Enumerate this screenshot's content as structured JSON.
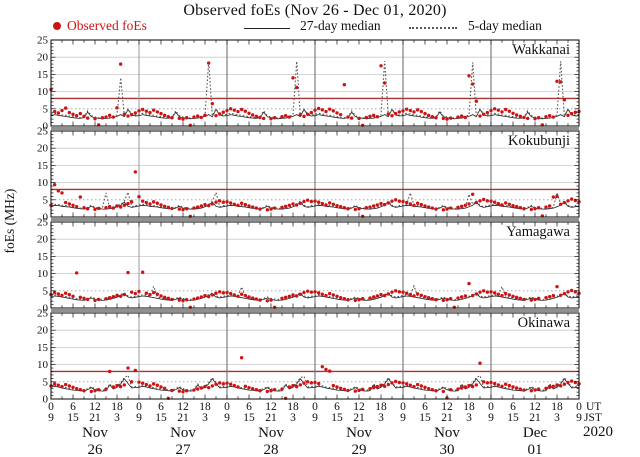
{
  "title": "Observed foEs (Nov 26 - Dec 01, 2020)",
  "ylabel": "foEs (MHz)",
  "legend": [
    {
      "label": "Observed foEs",
      "marker": "red-dot",
      "color": "#cc1414"
    },
    {
      "label": "27-day median",
      "marker": "solid-line",
      "color": "#222222"
    },
    {
      "label": "5-day median",
      "marker": "dotted-line",
      "color": "#555555"
    }
  ],
  "xaxis": {
    "ut_labels": [
      "0",
      "6",
      "12",
      "18"
    ],
    "jst_labels": [
      "9",
      "15",
      "21",
      "3"
    ],
    "end_ut": "0",
    "end_jst": "9",
    "ut_caption": "UT",
    "jst_caption": "JST",
    "year": "2020"
  },
  "yaxis": {
    "ticks": [
      0,
      5,
      10,
      15,
      20,
      25
    ],
    "range": [
      0,
      25
    ]
  },
  "days": [
    "Nov 26",
    "Nov 27",
    "Nov 28",
    "Nov 29",
    "Nov 30",
    "Dec 01"
  ],
  "colors": {
    "observed": "#cc1414",
    "median27": "#222222",
    "median5": "#555555",
    "red_threshold": "#aa3333",
    "grid_solid": "#c9c9c9",
    "grid_dotted": "#999999",
    "day_line": "#666666",
    "day_line_light": "#9a9a9a",
    "panel_border": "#1a1a1a",
    "divider": "#909090"
  },
  "chart_data": {
    "type": "scatter",
    "x_unit": "hours (UT) from Nov 26 00:00",
    "x_range": [
      0,
      144
    ],
    "y_range": [
      0,
      25
    ],
    "gridlines": {
      "solid": [
        10,
        15,
        20
      ],
      "dotted": [
        5
      ]
    },
    "panels": [
      {
        "station": "Wakkanai",
        "red_line": 8,
        "observed_hourly": [
          10.6,
          4.2,
          3.8,
          4.5,
          5.2,
          3.9,
          3.4,
          3.0,
          3.6,
          2.8,
          2.3,
          null,
          2.1,
          0.3,
          2.4,
          2.6,
          3.1,
          2.6,
          5.3,
          18.0,
          3.4,
          2.9,
          3.3,
          3.8,
          4.4,
          4.8,
          4.3,
          3.9,
          4.6,
          4.1,
          3.6,
          3.1,
          2.7,
          2.4,
          null,
          2.2,
          2.0,
          2.4,
          0.2,
          2.6,
          2.9,
          2.5,
          3.1,
          18.3,
          6.5,
          3.0,
          3.5,
          4.0,
          4.5,
          5.0,
          4.6,
          4.2,
          4.8,
          4.3,
          3.7,
          3.2,
          2.8,
          2.5,
          2.2,
          null,
          2.1,
          2.4,
          null,
          2.7,
          3.0,
          2.6,
          14.0,
          11.2,
          3.3,
          2.8,
          3.4,
          3.9,
          4.6,
          5.1,
          4.7,
          4.2,
          4.9,
          4.4,
          3.8,
          3.3,
          12.0,
          2.6,
          2.3,
          null,
          2.2,
          0.2,
          2.5,
          2.8,
          3.1,
          2.7,
          17.5,
          12.5,
          3.5,
          3.0,
          3.6,
          4.1,
          4.4,
          4.9,
          4.5,
          4.1,
          4.7,
          4.2,
          3.6,
          3.1,
          2.7,
          2.4,
          null,
          2.2,
          2.0,
          2.3,
          null,
          2.6,
          2.9,
          2.5,
          14.6,
          12.2,
          7.2,
          2.9,
          3.4,
          3.9,
          4.5,
          5.0,
          4.6,
          4.1,
          4.8,
          4.3,
          3.7,
          3.2,
          2.8,
          2.5,
          2.2,
          null,
          2.1,
          2.4,
          0.3,
          2.7,
          3.0,
          2.6,
          13.0,
          12.8,
          7.6,
          3.1,
          3.6,
          4.0,
          4.2
        ],
        "median27_daily": [
          3.0,
          3.3,
          3.1,
          2.9,
          2.8,
          2.6,
          2.4,
          2.3,
          2.2,
          2.4,
          4.0,
          2.7,
          2.4,
          2.2,
          2.1,
          2.2,
          2.3,
          2.5,
          2.8,
          3.3,
          2.7,
          4.8,
          3.2,
          2.9
        ],
        "median5_daily": [
          3.4,
          3.7,
          3.5,
          3.2,
          3.1,
          2.9,
          2.7,
          2.5,
          2.4,
          2.6,
          4.4,
          3.0,
          2.6,
          2.4,
          2.3,
          2.4,
          2.6,
          2.8,
          3.2,
          4.6,
          3.0,
          4.9,
          3.5,
          3.2
        ],
        "median5_spikes": [
          [
            19,
            14.0
          ],
          [
            43,
            18.8
          ],
          [
            67,
            18.8
          ],
          [
            91,
            18.9
          ],
          [
            115,
            18.5
          ],
          [
            139,
            18.8
          ]
        ]
      },
      {
        "station": "Kokubunji",
        "red_line": 8,
        "observed_hourly": [
          3.4,
          9.4,
          7.6,
          7.0,
          4.2,
          3.8,
          3.4,
          3.0,
          5.8,
          2.7,
          2.4,
          null,
          2.2,
          2.5,
          null,
          2.7,
          3.0,
          2.6,
          3.2,
          2.9,
          3.4,
          3.9,
          4.4,
          13.1,
          5.9,
          4.6,
          4.2,
          3.8,
          4.4,
          4.0,
          3.5,
          3.1,
          2.8,
          2.5,
          null,
          2.3,
          2.1,
          2.4,
          0.2,
          2.6,
          2.9,
          3.2,
          3.6,
          3.3,
          3.8,
          4.3,
          4.7,
          4.3,
          4.4,
          4.1,
          3.7,
          3.4,
          4.0,
          3.6,
          3.2,
          2.9,
          2.6,
          2.3,
          null,
          2.1,
          2.3,
          2.6,
          null,
          2.8,
          3.1,
          3.4,
          3.8,
          3.5,
          4.0,
          4.5,
          4.9,
          4.5,
          4.6,
          4.3,
          3.9,
          3.5,
          4.1,
          3.7,
          3.3,
          3.0,
          2.7,
          2.4,
          null,
          2.2,
          2.4,
          0.2,
          2.7,
          2.9,
          3.2,
          3.5,
          3.9,
          3.6,
          4.1,
          4.6,
          5.0,
          4.6,
          4.5,
          4.2,
          3.8,
          3.4,
          4.0,
          3.6,
          3.2,
          2.9,
          2.6,
          2.3,
          null,
          2.1,
          2.3,
          2.6,
          null,
          2.8,
          3.1,
          3.4,
          3.8,
          6.6,
          4.2,
          4.7,
          5.1,
          4.7,
          4.6,
          4.3,
          3.9,
          3.5,
          4.1,
          3.7,
          3.3,
          3.0,
          2.7,
          2.4,
          null,
          2.2,
          2.4,
          2.7,
          0.3,
          2.9,
          3.2,
          5.8,
          6.0,
          3.7,
          4.2,
          4.7,
          5.2,
          4.8,
          4.4
        ],
        "median27_daily": [
          3.2,
          3.4,
          3.3,
          3.1,
          3.0,
          2.9,
          2.7,
          2.5,
          2.4,
          2.3,
          2.6,
          3.1,
          2.6,
          2.4,
          2.3,
          2.3,
          2.4,
          2.6,
          3.0,
          3.4,
          4.3,
          3.1,
          2.8,
          3.0
        ],
        "median5_daily": [
          3.5,
          3.7,
          3.6,
          3.4,
          3.3,
          3.1,
          2.9,
          2.7,
          2.6,
          2.5,
          2.8,
          3.4,
          2.8,
          2.6,
          2.5,
          2.5,
          2.6,
          2.8,
          3.3,
          3.7,
          4.6,
          3.4,
          3.0,
          3.3
        ],
        "median5_spikes": [
          [
            15,
            7.0
          ],
          [
            21,
            7.2
          ],
          [
            45,
            7.1
          ],
          [
            98,
            7.0
          ],
          [
            114,
            6.6
          ],
          [
            138,
            7.1
          ]
        ]
      },
      {
        "station": "Yamagawa",
        "red_line": null,
        "observed_hourly": [
          3.9,
          4.5,
          4.1,
          3.7,
          4.3,
          3.9,
          3.4,
          10.2,
          3.1,
          2.8,
          2.5,
          null,
          2.2,
          2.5,
          null,
          2.7,
          3.0,
          3.3,
          3.7,
          3.4,
          3.9,
          10.3,
          4.6,
          4.2,
          4.8,
          10.4,
          4.3,
          3.9,
          4.5,
          4.0,
          3.5,
          3.1,
          2.8,
          2.5,
          null,
          2.3,
          2.1,
          2.4,
          0.2,
          2.6,
          2.9,
          3.2,
          3.6,
          3.3,
          3.8,
          4.3,
          4.7,
          4.4,
          4.5,
          4.2,
          3.8,
          3.4,
          4.0,
          3.6,
          3.2,
          2.9,
          2.6,
          2.3,
          null,
          2.1,
          2.3,
          0.2,
          null,
          2.8,
          3.1,
          3.4,
          3.8,
          3.5,
          4.0,
          4.5,
          4.9,
          4.6,
          4.7,
          4.4,
          4.0,
          3.6,
          4.2,
          3.8,
          3.4,
          3.0,
          2.7,
          2.4,
          null,
          2.2,
          2.4,
          2.7,
          null,
          2.9,
          3.2,
          3.5,
          3.9,
          3.6,
          4.1,
          4.6,
          5.0,
          4.7,
          4.6,
          4.3,
          3.9,
          3.5,
          4.1,
          3.7,
          3.3,
          3.0,
          2.7,
          2.4,
          null,
          2.2,
          2.4,
          2.7,
          0.2,
          2.9,
          3.2,
          3.5,
          7.1,
          3.6,
          4.1,
          4.6,
          5.0,
          4.6,
          4.7,
          4.4,
          4.0,
          3.6,
          4.2,
          3.8,
          3.4,
          3.1,
          2.8,
          2.5,
          null,
          2.3,
          2.5,
          2.8,
          null,
          3.0,
          3.3,
          3.6,
          6.2,
          3.7,
          4.2,
          4.7,
          5.1,
          4.7,
          4.3
        ],
        "median27_daily": [
          3.3,
          3.5,
          3.4,
          3.2,
          3.0,
          2.8,
          2.6,
          2.4,
          2.3,
          2.2,
          2.5,
          2.9,
          2.5,
          2.3,
          2.2,
          2.3,
          2.5,
          2.8,
          3.1,
          3.6,
          4.1,
          3.2,
          2.9,
          3.1
        ],
        "median5_daily": [
          3.6,
          3.8,
          3.7,
          3.5,
          3.3,
          3.1,
          2.9,
          2.7,
          2.6,
          2.5,
          2.8,
          3.2,
          2.8,
          2.6,
          2.5,
          2.6,
          2.8,
          3.1,
          3.4,
          3.9,
          4.4,
          3.5,
          3.2,
          3.4
        ],
        "median5_spikes": [
          [
            28,
            6.3
          ],
          [
            52,
            6.1
          ],
          [
            99,
            6.4
          ],
          [
            123,
            6.2
          ]
        ]
      },
      {
        "station": "Okinawa",
        "red_line": 8,
        "observed_hourly": [
          3.8,
          4.4,
          4.0,
          3.6,
          4.2,
          3.8,
          3.4,
          3.0,
          2.7,
          2.4,
          null,
          2.2,
          2.4,
          2.7,
          null,
          2.9,
          8.0,
          3.5,
          3.9,
          3.6,
          4.1,
          9.0,
          5.0,
          8.3,
          4.9,
          4.6,
          4.2,
          3.8,
          4.4,
          4.0,
          3.5,
          3.1,
          0.2,
          2.5,
          null,
          2.3,
          2.1,
          2.4,
          null,
          2.6,
          2.9,
          3.2,
          3.6,
          3.3,
          3.8,
          4.3,
          4.7,
          4.4,
          4.6,
          4.3,
          3.9,
          3.5,
          12.0,
          3.7,
          3.3,
          3.0,
          2.7,
          2.4,
          null,
          2.2,
          2.4,
          2.7,
          null,
          2.9,
          0.2,
          3.5,
          3.9,
          3.6,
          4.1,
          4.6,
          5.0,
          4.7,
          4.8,
          4.5,
          9.4,
          8.6,
          8.1,
          3.9,
          3.5,
          3.1,
          2.8,
          2.5,
          null,
          2.3,
          2.5,
          2.8,
          null,
          3.0,
          3.3,
          3.6,
          4.0,
          3.7,
          4.2,
          4.7,
          5.1,
          4.8,
          4.7,
          4.4,
          4.0,
          3.6,
          4.2,
          3.8,
          3.4,
          3.0,
          2.7,
          2.4,
          null,
          2.2,
          0.3,
          2.7,
          null,
          2.9,
          3.2,
          3.5,
          3.9,
          3.6,
          4.1,
          10.4,
          5.0,
          4.7,
          4.8,
          4.5,
          4.1,
          3.7,
          4.3,
          3.9,
          3.5,
          3.2,
          2.9,
          2.6,
          null,
          2.4,
          2.6,
          2.9,
          null,
          3.1,
          3.4,
          3.7,
          4.1,
          3.8,
          4.3,
          4.8,
          5.2,
          4.8,
          4.4
        ],
        "median27_daily": [
          3.4,
          3.7,
          3.5,
          3.2,
          3.0,
          2.8,
          2.6,
          2.5,
          2.4,
          2.3,
          2.7,
          3.3,
          2.7,
          2.4,
          2.3,
          2.4,
          4.1,
          2.9,
          3.4,
          4.4,
          5.9,
          4.5,
          3.2,
          3.3
        ],
        "median5_daily": [
          3.7,
          4.0,
          3.8,
          3.5,
          3.3,
          3.1,
          2.9,
          2.8,
          2.7,
          2.6,
          3.0,
          3.6,
          3.0,
          2.7,
          2.6,
          2.7,
          4.4,
          3.2,
          3.7,
          4.7,
          6.2,
          4.8,
          3.5,
          3.6
        ],
        "median5_spikes": [
          [
            21,
            6.9
          ],
          [
            69,
            6.6
          ],
          [
            117,
            6.8
          ]
        ]
      }
    ]
  }
}
